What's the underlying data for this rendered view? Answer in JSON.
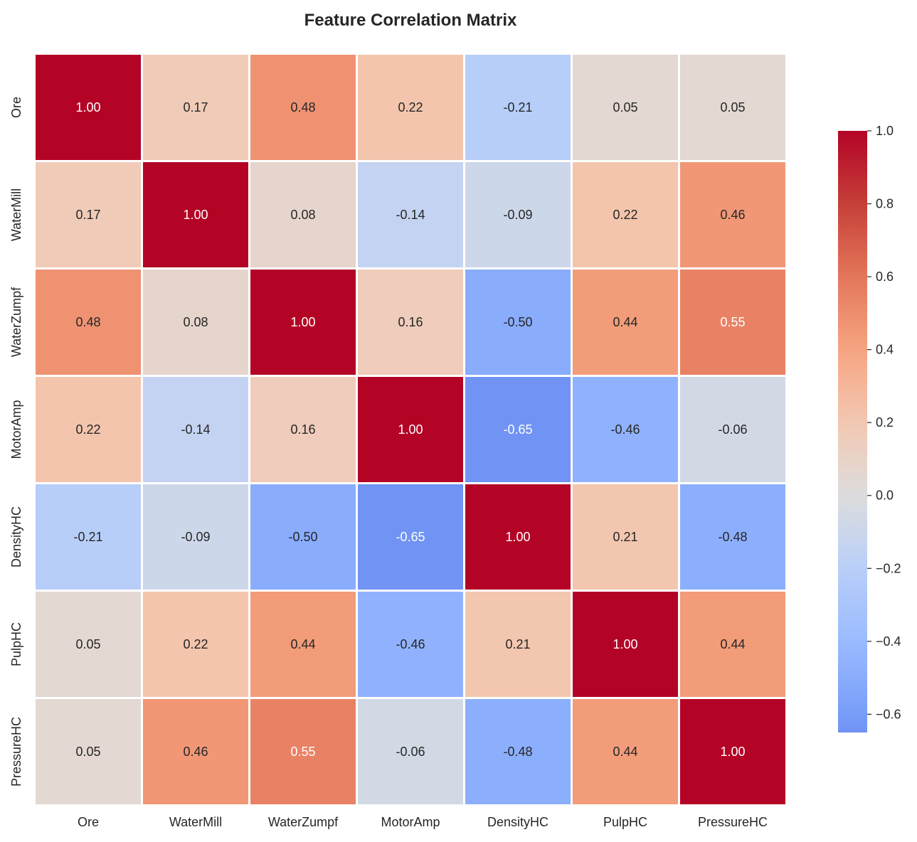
{
  "chart_data": {
    "type": "heatmap",
    "title": "Feature Correlation Matrix",
    "xlabel": "",
    "ylabel": "",
    "labels": [
      "Ore",
      "WaterMill",
      "WaterZumpf",
      "MotorAmp",
      "DensityHC",
      "PulpHC",
      "PressureHC"
    ],
    "matrix": [
      [
        1.0,
        0.17,
        0.48,
        0.22,
        -0.21,
        0.05,
        0.05
      ],
      [
        0.17,
        1.0,
        0.08,
        -0.14,
        -0.09,
        0.22,
        0.46
      ],
      [
        0.48,
        0.08,
        1.0,
        0.16,
        -0.5,
        0.44,
        0.55
      ],
      [
        0.22,
        -0.14,
        0.16,
        1.0,
        -0.65,
        -0.46,
        -0.06
      ],
      [
        -0.21,
        -0.09,
        -0.5,
        -0.65,
        1.0,
        0.21,
        -0.48
      ],
      [
        0.05,
        0.22,
        0.44,
        -0.46,
        0.21,
        1.0,
        0.44
      ],
      [
        0.05,
        0.46,
        0.55,
        -0.06,
        -0.48,
        0.44,
        1.0
      ]
    ],
    "value_format": "0.00",
    "colormap": "coolwarm",
    "color_center": 0.0,
    "colorbar": {
      "range": [
        -0.65,
        1.0
      ],
      "ticks": [
        1.0,
        0.8,
        0.6,
        0.4,
        0.2,
        0.0,
        -0.2,
        -0.4,
        -0.6
      ],
      "tick_labels": [
        "1.0",
        "0.8",
        "0.6",
        "0.4",
        "0.2",
        "0.0",
        "−0.2",
        "−0.4",
        "−0.6"
      ],
      "placement": "right"
    },
    "grid": false
  }
}
